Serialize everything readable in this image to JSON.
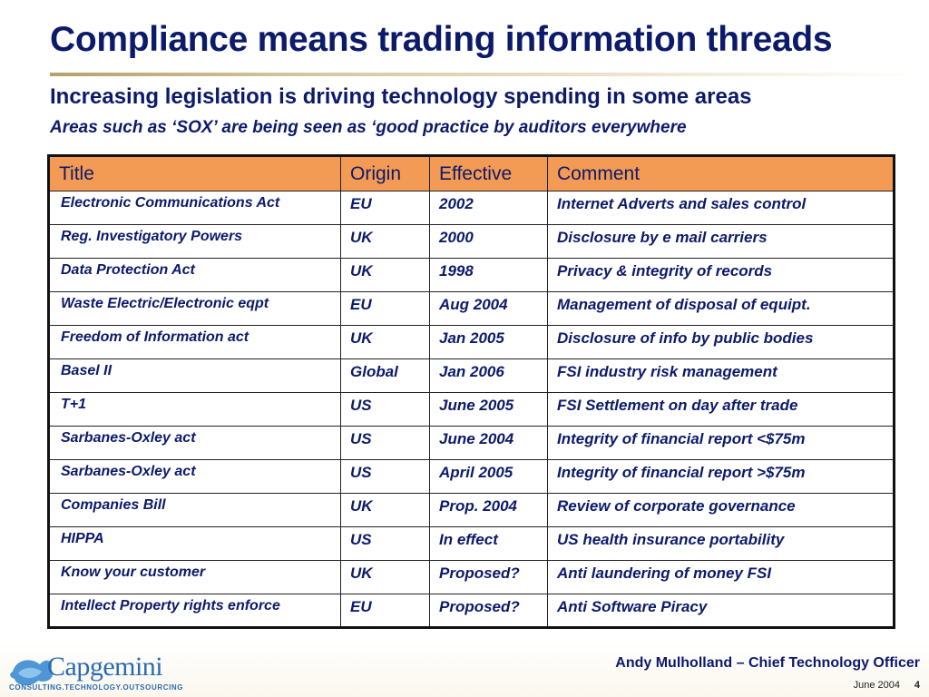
{
  "slide": {
    "title": "Compliance means trading information threads",
    "subtitle": "Increasing legislation is driving technology spending in some areas",
    "note": "Areas such as ‘SOX’ are being seen as ‘good practice by auditors everywhere"
  },
  "table": {
    "headers": [
      "Title",
      "Origin",
      "Effective",
      "Comment"
    ],
    "rows": [
      [
        "Electronic Communications Act",
        "EU",
        "2002",
        "Internet Adverts and sales control"
      ],
      [
        "Reg. Investigatory Powers",
        "UK",
        "2000",
        "Disclosure by e mail carriers"
      ],
      [
        "Data Protection Act",
        "UK",
        "1998",
        "Privacy & integrity of records"
      ],
      [
        "Waste Electric/Electronic eqpt",
        "EU",
        "Aug 2004",
        "Management of disposal of equipt."
      ],
      [
        "Freedom of Information act",
        "UK",
        "Jan 2005",
        "Disclosure of info by public bodies"
      ],
      [
        "Basel II",
        "Global",
        "Jan 2006",
        "FSI industry risk management"
      ],
      [
        "T+1",
        "US",
        "June 2005",
        "FSI Settlement on day after trade"
      ],
      [
        "Sarbanes-Oxley act",
        "US",
        "June 2004",
        "Integrity of financial report <$75m"
      ],
      [
        "Sarbanes-Oxley act",
        "US",
        "April 2005",
        "Integrity of financial report >$75m"
      ],
      [
        "Companies Bill",
        "UK",
        "Prop. 2004",
        "Review of corporate governance"
      ],
      [
        "HIPPA",
        "US",
        "In effect",
        "US health insurance portability"
      ],
      [
        "Know your customer",
        "UK",
        "Proposed?",
        "Anti laundering of money FSI"
      ],
      [
        "Intellect Property rights enforce",
        "EU",
        "Proposed?",
        "Anti Software Piracy"
      ]
    ]
  },
  "footer": {
    "logo_text": "Capgemini",
    "logo_tagline": "CONSULTING.TECHNOLOGY.OUTSOURCING",
    "presenter": "Andy Mulholland – Chief Technology Officer",
    "date": "June 2004",
    "page": "4"
  },
  "colors": {
    "title": "#0c1a6b",
    "header_fill": "#f39a54",
    "brand_blue": "#2a6bb0"
  }
}
